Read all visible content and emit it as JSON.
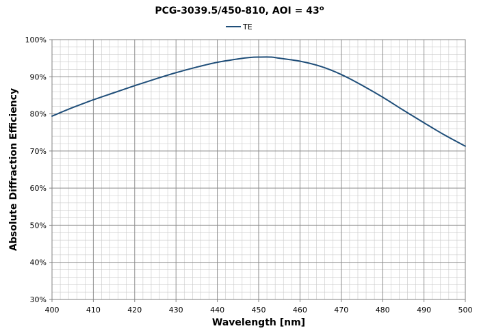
{
  "chart_data": {
    "type": "line",
    "title": "PCG-3039.5/450-810, AOI = 43",
    "title_superscript": "o",
    "xlabel": "Wavelength [nm]",
    "ylabel": "Absolute Diffraction Efficiency",
    "xlim": [
      400,
      500
    ],
    "ylim": [
      0.3,
      1.0
    ],
    "x_ticks": [
      "400",
      "410",
      "420",
      "430",
      "440",
      "450",
      "460",
      "470",
      "480",
      "490",
      "500"
    ],
    "y_ticks": [
      "30%",
      "40%",
      "50%",
      "60%",
      "70%",
      "80%",
      "90%",
      "100%"
    ],
    "grid": true,
    "legend_position": "top-center",
    "series": [
      {
        "name": "TE",
        "color": "#1f4e79",
        "x": [
          400,
          405,
          410,
          415,
          420,
          425,
          430,
          435,
          440,
          445,
          448,
          450,
          453,
          455,
          460,
          465,
          470,
          475,
          480,
          485,
          490,
          495,
          500
        ],
        "y": [
          0.794,
          0.817,
          0.838,
          0.857,
          0.876,
          0.894,
          0.911,
          0.926,
          0.939,
          0.948,
          0.952,
          0.953,
          0.953,
          0.95,
          0.942,
          0.928,
          0.906,
          0.877,
          0.845,
          0.81,
          0.776,
          0.743,
          0.713
        ]
      }
    ]
  }
}
